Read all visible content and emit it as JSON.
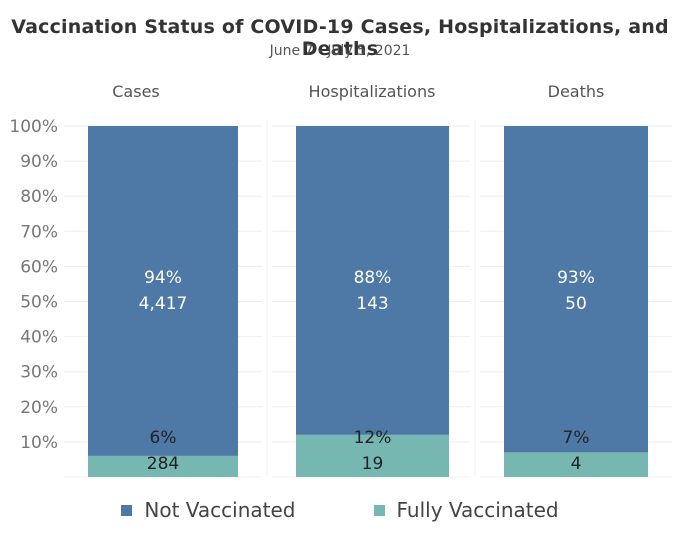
{
  "chart_data": {
    "type": "bar",
    "stacked": true,
    "title": "Vaccination Status of COVID-19 Cases, Hospitalizations, and Deaths",
    "subtitle": "June 7 - July 5, 2021",
    "categories": [
      "Cases",
      "Hospitalizations",
      "Deaths"
    ],
    "ylim": [
      0,
      100
    ],
    "yticks": [
      "10%",
      "20%",
      "30%",
      "40%",
      "50%",
      "60%",
      "70%",
      "80%",
      "90%",
      "100%"
    ],
    "grid": true,
    "legend_position": "bottom",
    "series": [
      {
        "name": "Not Vaccinated",
        "color": "#4e79a7",
        "values": [
          94,
          88,
          93
        ],
        "percent_labels": [
          "94%",
          "88%",
          "93%"
        ],
        "count_labels": [
          "4,417",
          "143",
          "50"
        ]
      },
      {
        "name": "Fully Vaccinated",
        "color": "#76b7b2",
        "values": [
          6,
          12,
          7
        ],
        "percent_labels": [
          "6%",
          "12%",
          "7%"
        ],
        "count_labels": [
          "284",
          "19",
          "4"
        ]
      }
    ]
  }
}
